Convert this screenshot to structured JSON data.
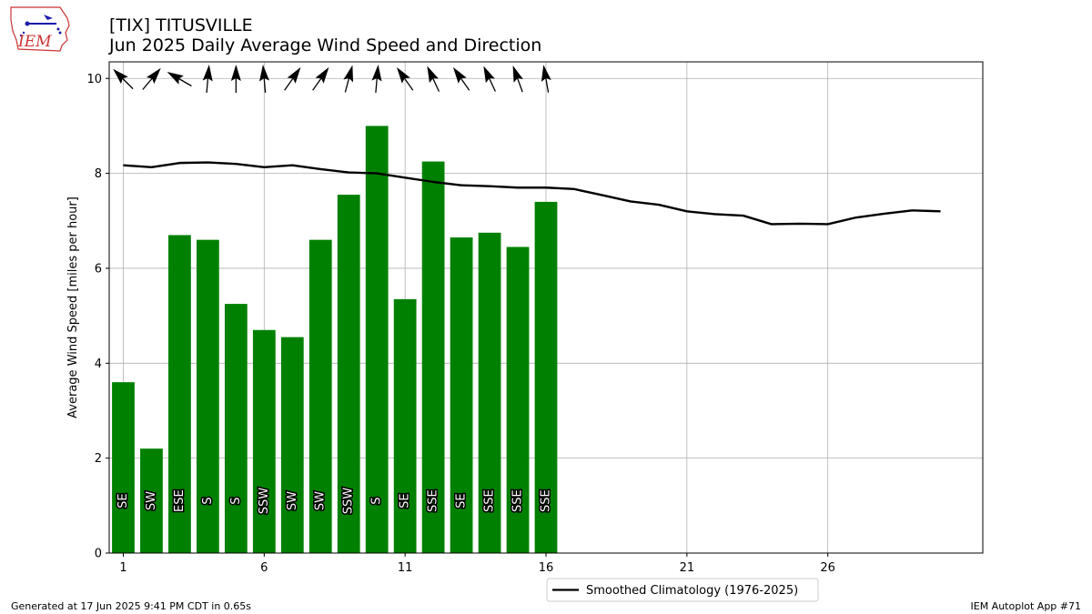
{
  "header": {
    "title": "[TIX] TITUSVILLE",
    "subtitle": "Jun 2025 Daily Average Wind Speed and Direction"
  },
  "logo": {
    "text": "IEM",
    "icon": "iem-state-logo-icon"
  },
  "footer": {
    "generated": "Generated at 17 Jun 2025 9:41 PM CDT in 0.65s",
    "app": "IEM Autoplot App #71"
  },
  "colors": {
    "bar": "#008000",
    "climo": "#000000",
    "grid": "#b0b0b0"
  },
  "chart_data": {
    "type": "bar",
    "ylabel": "Average Wind Speed [miles per hour]",
    "xlabel": "",
    "xlim": [
      0.5,
      31.5
    ],
    "ylim": [
      0,
      10.35
    ],
    "xticks": [
      1,
      6,
      11,
      16,
      21,
      26
    ],
    "yticks": [
      0,
      2,
      4,
      6,
      8,
      10
    ],
    "grid": true,
    "legend_placement": "bottom-center",
    "bars": {
      "days": [
        1,
        2,
        3,
        4,
        5,
        6,
        7,
        8,
        9,
        10,
        11,
        12,
        13,
        14,
        15,
        16
      ],
      "values": [
        3.6,
        2.2,
        6.7,
        6.6,
        5.25,
        4.7,
        4.55,
        6.6,
        7.55,
        9.0,
        5.35,
        8.25,
        6.65,
        6.75,
        6.45,
        7.4
      ],
      "directions": [
        "SE",
        "SW",
        "ESE",
        "S",
        "S",
        "SSW",
        "SW",
        "SW",
        "SSW",
        "S",
        "SE",
        "SSE",
        "SE",
        "SSE",
        "SSE",
        "SSE"
      ],
      "arrow_angles_deg": [
        -45,
        40,
        -60,
        5,
        0,
        -5,
        35,
        35,
        15,
        5,
        -35,
        -25,
        -35,
        -25,
        -20,
        -10
      ]
    },
    "climatology": {
      "name": "Smoothed Climatology (1976-2025)",
      "days": [
        1,
        2,
        3,
        4,
        5,
        6,
        7,
        8,
        9,
        10,
        11,
        12,
        13,
        14,
        15,
        16,
        17,
        18,
        19,
        20,
        21,
        22,
        23,
        24,
        25,
        26,
        27,
        28,
        29,
        30
      ],
      "values": [
        8.17,
        8.13,
        8.22,
        8.23,
        8.2,
        8.13,
        8.17,
        8.09,
        8.02,
        8.0,
        7.91,
        7.82,
        7.75,
        7.73,
        7.7,
        7.7,
        7.67,
        7.54,
        7.41,
        7.34,
        7.2,
        7.14,
        7.11,
        6.93,
        6.94,
        6.93,
        7.07,
        7.15,
        7.22,
        7.2
      ]
    }
  }
}
